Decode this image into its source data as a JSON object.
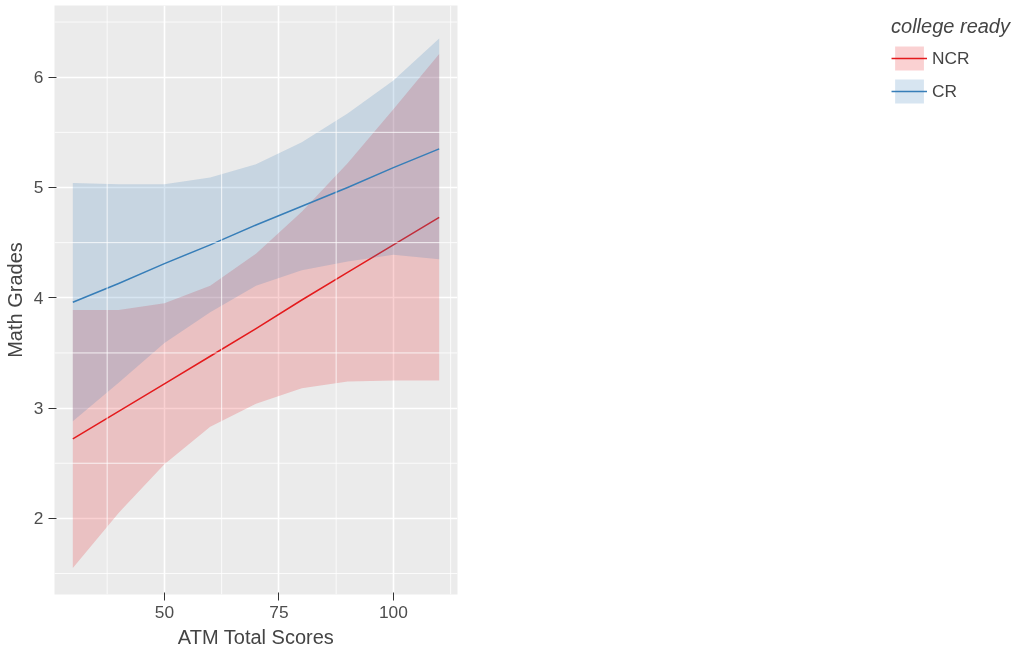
{
  "chart_data": {
    "type": "line",
    "xlabel": "ATM Total Scores",
    "ylabel": "Math Grades",
    "legend_title": "college ready",
    "x": [
      30,
      40,
      50,
      60,
      70,
      80,
      90,
      100,
      110
    ],
    "series": [
      {
        "name": "NCR",
        "color": "#e41a1c",
        "values": [
          2.72,
          2.97,
          3.22,
          3.47,
          3.72,
          3.98,
          4.23,
          4.48,
          4.73
        ],
        "lower": [
          1.55,
          2.05,
          2.49,
          2.83,
          3.04,
          3.18,
          3.24,
          3.25,
          3.25
        ],
        "upper": [
          3.89,
          3.89,
          3.95,
          4.11,
          4.4,
          4.78,
          5.22,
          5.71,
          6.21
        ]
      },
      {
        "name": "CR",
        "color": "#377eb8",
        "values": [
          3.96,
          4.13,
          4.31,
          4.48,
          4.66,
          4.83,
          5.0,
          5.18,
          5.35
        ],
        "lower": [
          2.88,
          3.23,
          3.59,
          3.87,
          4.11,
          4.25,
          4.33,
          4.39,
          4.35
        ],
        "upper": [
          5.04,
          5.03,
          5.03,
          5.09,
          5.21,
          5.41,
          5.67,
          5.97,
          6.35
        ]
      }
    ],
    "xlim": [
      26,
      114
    ],
    "ylim": [
      1.31,
      6.65
    ],
    "xticks": [
      50,
      75,
      100
    ],
    "yticks": [
      2,
      3,
      4,
      5,
      6
    ],
    "grid": true,
    "legend": "right",
    "marker": "none",
    "line_style": "solid"
  }
}
